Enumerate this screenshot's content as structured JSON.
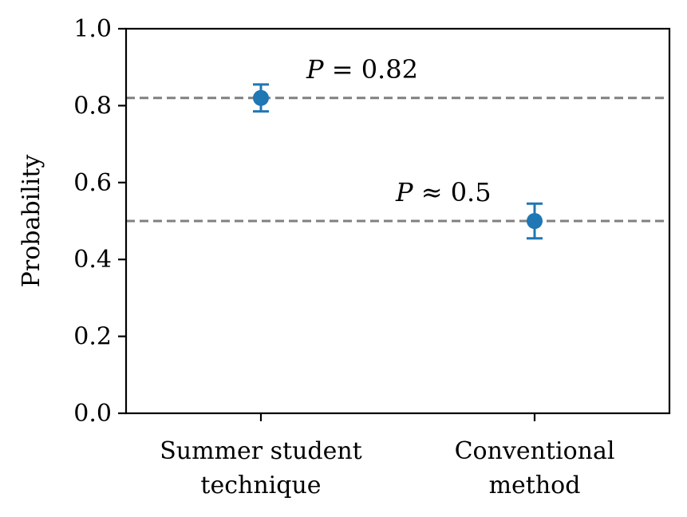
{
  "chart_data": {
    "type": "scatter",
    "title": "",
    "xlabel": "",
    "ylabel": "Probability",
    "ylim": [
      0,
      1
    ],
    "yticks": [
      "0.0",
      "0.2",
      "0.4",
      "0.6",
      "0.8",
      "1.0"
    ],
    "categories": [
      {
        "lines": [
          "Summer student",
          "technique"
        ]
      },
      {
        "lines": [
          "Conventional",
          "method"
        ]
      }
    ],
    "series": [
      {
        "color": "#1f77b4",
        "values": [
          0.82,
          0.5
        ],
        "error": [
          0.035,
          0.045
        ]
      }
    ],
    "reference_lines": [
      {
        "y": 0.82,
        "style": "dashed",
        "color": "#808080"
      },
      {
        "y": 0.5,
        "style": "dashed",
        "color": "#808080"
      }
    ],
    "annotations": [
      {
        "symbol": "P",
        "relation": "=",
        "value": "0.82"
      },
      {
        "symbol": "P",
        "relation": "≈",
        "value": "0.5"
      }
    ],
    "grid": false
  }
}
